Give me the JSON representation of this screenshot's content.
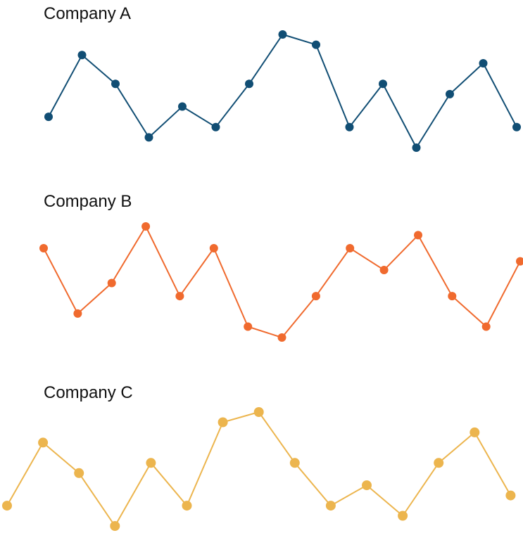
{
  "chart_data": [
    {
      "type": "line",
      "title": "Company A",
      "color": "#114e74",
      "x": [
        1,
        2,
        3,
        4,
        5,
        6,
        7,
        8,
        9,
        10,
        11,
        12,
        13,
        14,
        15
      ],
      "values": [
        3.0,
        6.0,
        4.6,
        2.0,
        3.5,
        2.5,
        4.6,
        7.0,
        6.5,
        2.5,
        4.6,
        1.5,
        4.1,
        5.6,
        2.5
      ]
    },
    {
      "type": "line",
      "title": "Company B",
      "color": "#f06a2e",
      "x": [
        1,
        2,
        3,
        4,
        5,
        6,
        7,
        8,
        9,
        10,
        11,
        12,
        13,
        14,
        15
      ],
      "values": [
        6.2,
        3.2,
        4.6,
        7.2,
        4.0,
        6.2,
        2.6,
        2.1,
        4.0,
        6.2,
        5.2,
        6.8,
        4.0,
        2.6,
        5.6
      ]
    },
    {
      "type": "line",
      "title": "Company C",
      "color": "#ecb54e",
      "x": [
        1,
        2,
        3,
        4,
        5,
        6,
        7,
        8,
        9,
        10,
        11,
        12,
        13,
        14,
        15
      ],
      "values": [
        2.5,
        5.6,
        4.1,
        1.5,
        4.6,
        2.5,
        6.6,
        7.1,
        4.6,
        2.5,
        3.5,
        2.0,
        4.6,
        6.1,
        3.0
      ]
    }
  ]
}
